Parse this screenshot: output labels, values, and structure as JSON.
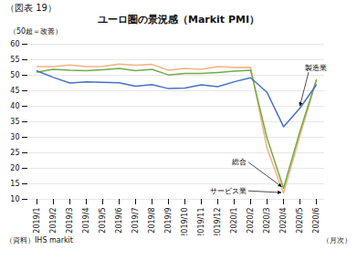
{
  "chart_data": {
    "type": "line",
    "title": "ユーロ圏の景況感（Markit PMI）",
    "subtitle": "（図表 19）",
    "ylabel": "（50超＝改善）",
    "xlabel": "（月次）",
    "annotations": [
      "（資料）IHS markit"
    ],
    "categories": [
      "2019/1",
      "2019/2",
      "2019/3",
      "2019/4",
      "2019/5",
      "2019/6",
      "2019/7",
      "2019/8",
      "2019/9",
      "2019/10",
      "2019/11",
      "2019/12",
      "2020/1",
      "2020/2",
      "2020/3",
      "2020/4",
      "2020/5",
      "2020/6"
    ],
    "series": [
      {
        "name": "サービス業",
        "color": "#f4b183",
        "values": [
          52.8,
          52.8,
          53.3,
          52.8,
          52.9,
          53.6,
          53.2,
          53.5,
          51.6,
          52.2,
          51.9,
          52.8,
          52.5,
          52.6,
          26.4,
          12.0,
          30.5,
          48.3
        ]
      },
      {
        "name": "総合",
        "color": "#70ad47",
        "values": [
          51.0,
          51.9,
          51.6,
          51.5,
          51.8,
          52.2,
          51.5,
          51.9,
          50.1,
          50.6,
          50.6,
          50.9,
          51.3,
          51.6,
          29.7,
          13.6,
          31.9,
          48.5
        ]
      },
      {
        "name": "製造業",
        "color": "#4472c4",
        "values": [
          51.4,
          49.3,
          47.5,
          47.9,
          47.7,
          47.6,
          46.5,
          47.0,
          45.7,
          45.9,
          46.9,
          46.3,
          47.9,
          49.2,
          44.5,
          33.4,
          39.4,
          46.9
        ]
      }
    ],
    "ylim": [
      10,
      60
    ],
    "yticks": [
      10,
      15,
      20,
      25,
      30,
      35,
      40,
      45,
      50,
      55,
      60
    ],
    "grid": true
  }
}
